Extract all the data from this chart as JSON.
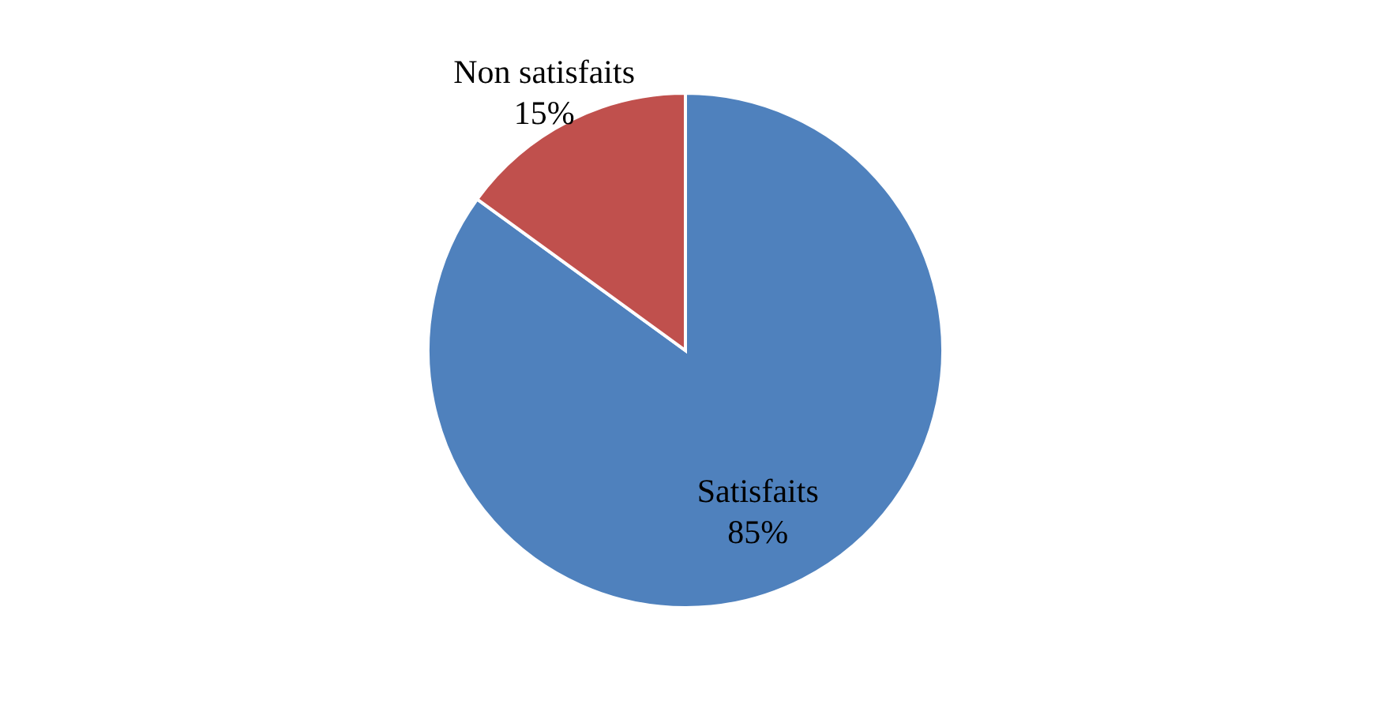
{
  "chart_data": {
    "type": "pie",
    "categories": [
      "Satisfaits",
      "Non satisfaits"
    ],
    "values": [
      85,
      15
    ],
    "colors": [
      "#4f81bd",
      "#c0504d"
    ],
    "value_labels": [
      "85%",
      "15%"
    ],
    "legend": false
  }
}
